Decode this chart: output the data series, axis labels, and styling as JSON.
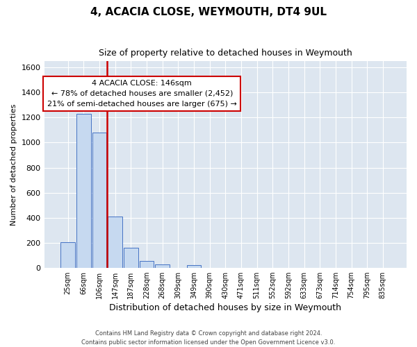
{
  "title": "4, ACACIA CLOSE, WEYMOUTH, DT4 9UL",
  "subtitle": "Size of property relative to detached houses in Weymouth",
  "xlabel": "Distribution of detached houses by size in Weymouth",
  "ylabel": "Number of detached properties",
  "footer_line1": "Contains HM Land Registry data © Crown copyright and database right 2024.",
  "footer_line2": "Contains public sector information licensed under the Open Government Licence v3.0.",
  "bar_labels": [
    "25sqm",
    "66sqm",
    "106sqm",
    "147sqm",
    "187sqm",
    "228sqm",
    "268sqm",
    "309sqm",
    "349sqm",
    "390sqm",
    "430sqm",
    "471sqm",
    "511sqm",
    "552sqm",
    "592sqm",
    "633sqm",
    "673sqm",
    "714sqm",
    "754sqm",
    "795sqm",
    "835sqm"
  ],
  "bar_values": [
    205,
    1230,
    1080,
    410,
    160,
    55,
    25,
    0,
    20,
    0,
    0,
    0,
    0,
    0,
    0,
    0,
    0,
    0,
    0,
    0,
    0
  ],
  "bar_color": "#c6d9f0",
  "bar_edge_color": "#4472c4",
  "property_line_index": 2.5,
  "property_line_color": "#cc0000",
  "ylim": [
    0,
    1650
  ],
  "yticks": [
    0,
    200,
    400,
    600,
    800,
    1000,
    1200,
    1400,
    1600
  ],
  "annotation_title": "4 ACACIA CLOSE: 146sqm",
  "annotation_line1": "← 78% of detached houses are smaller (2,452)",
  "annotation_line2": "21% of semi-detached houses are larger (675) →",
  "annotation_box_color": "#ffffff",
  "annotation_box_edge_color": "#cc0000",
  "ax_facecolor": "#dde6f0",
  "background_color": "#ffffff",
  "grid_color": "#ffffff"
}
